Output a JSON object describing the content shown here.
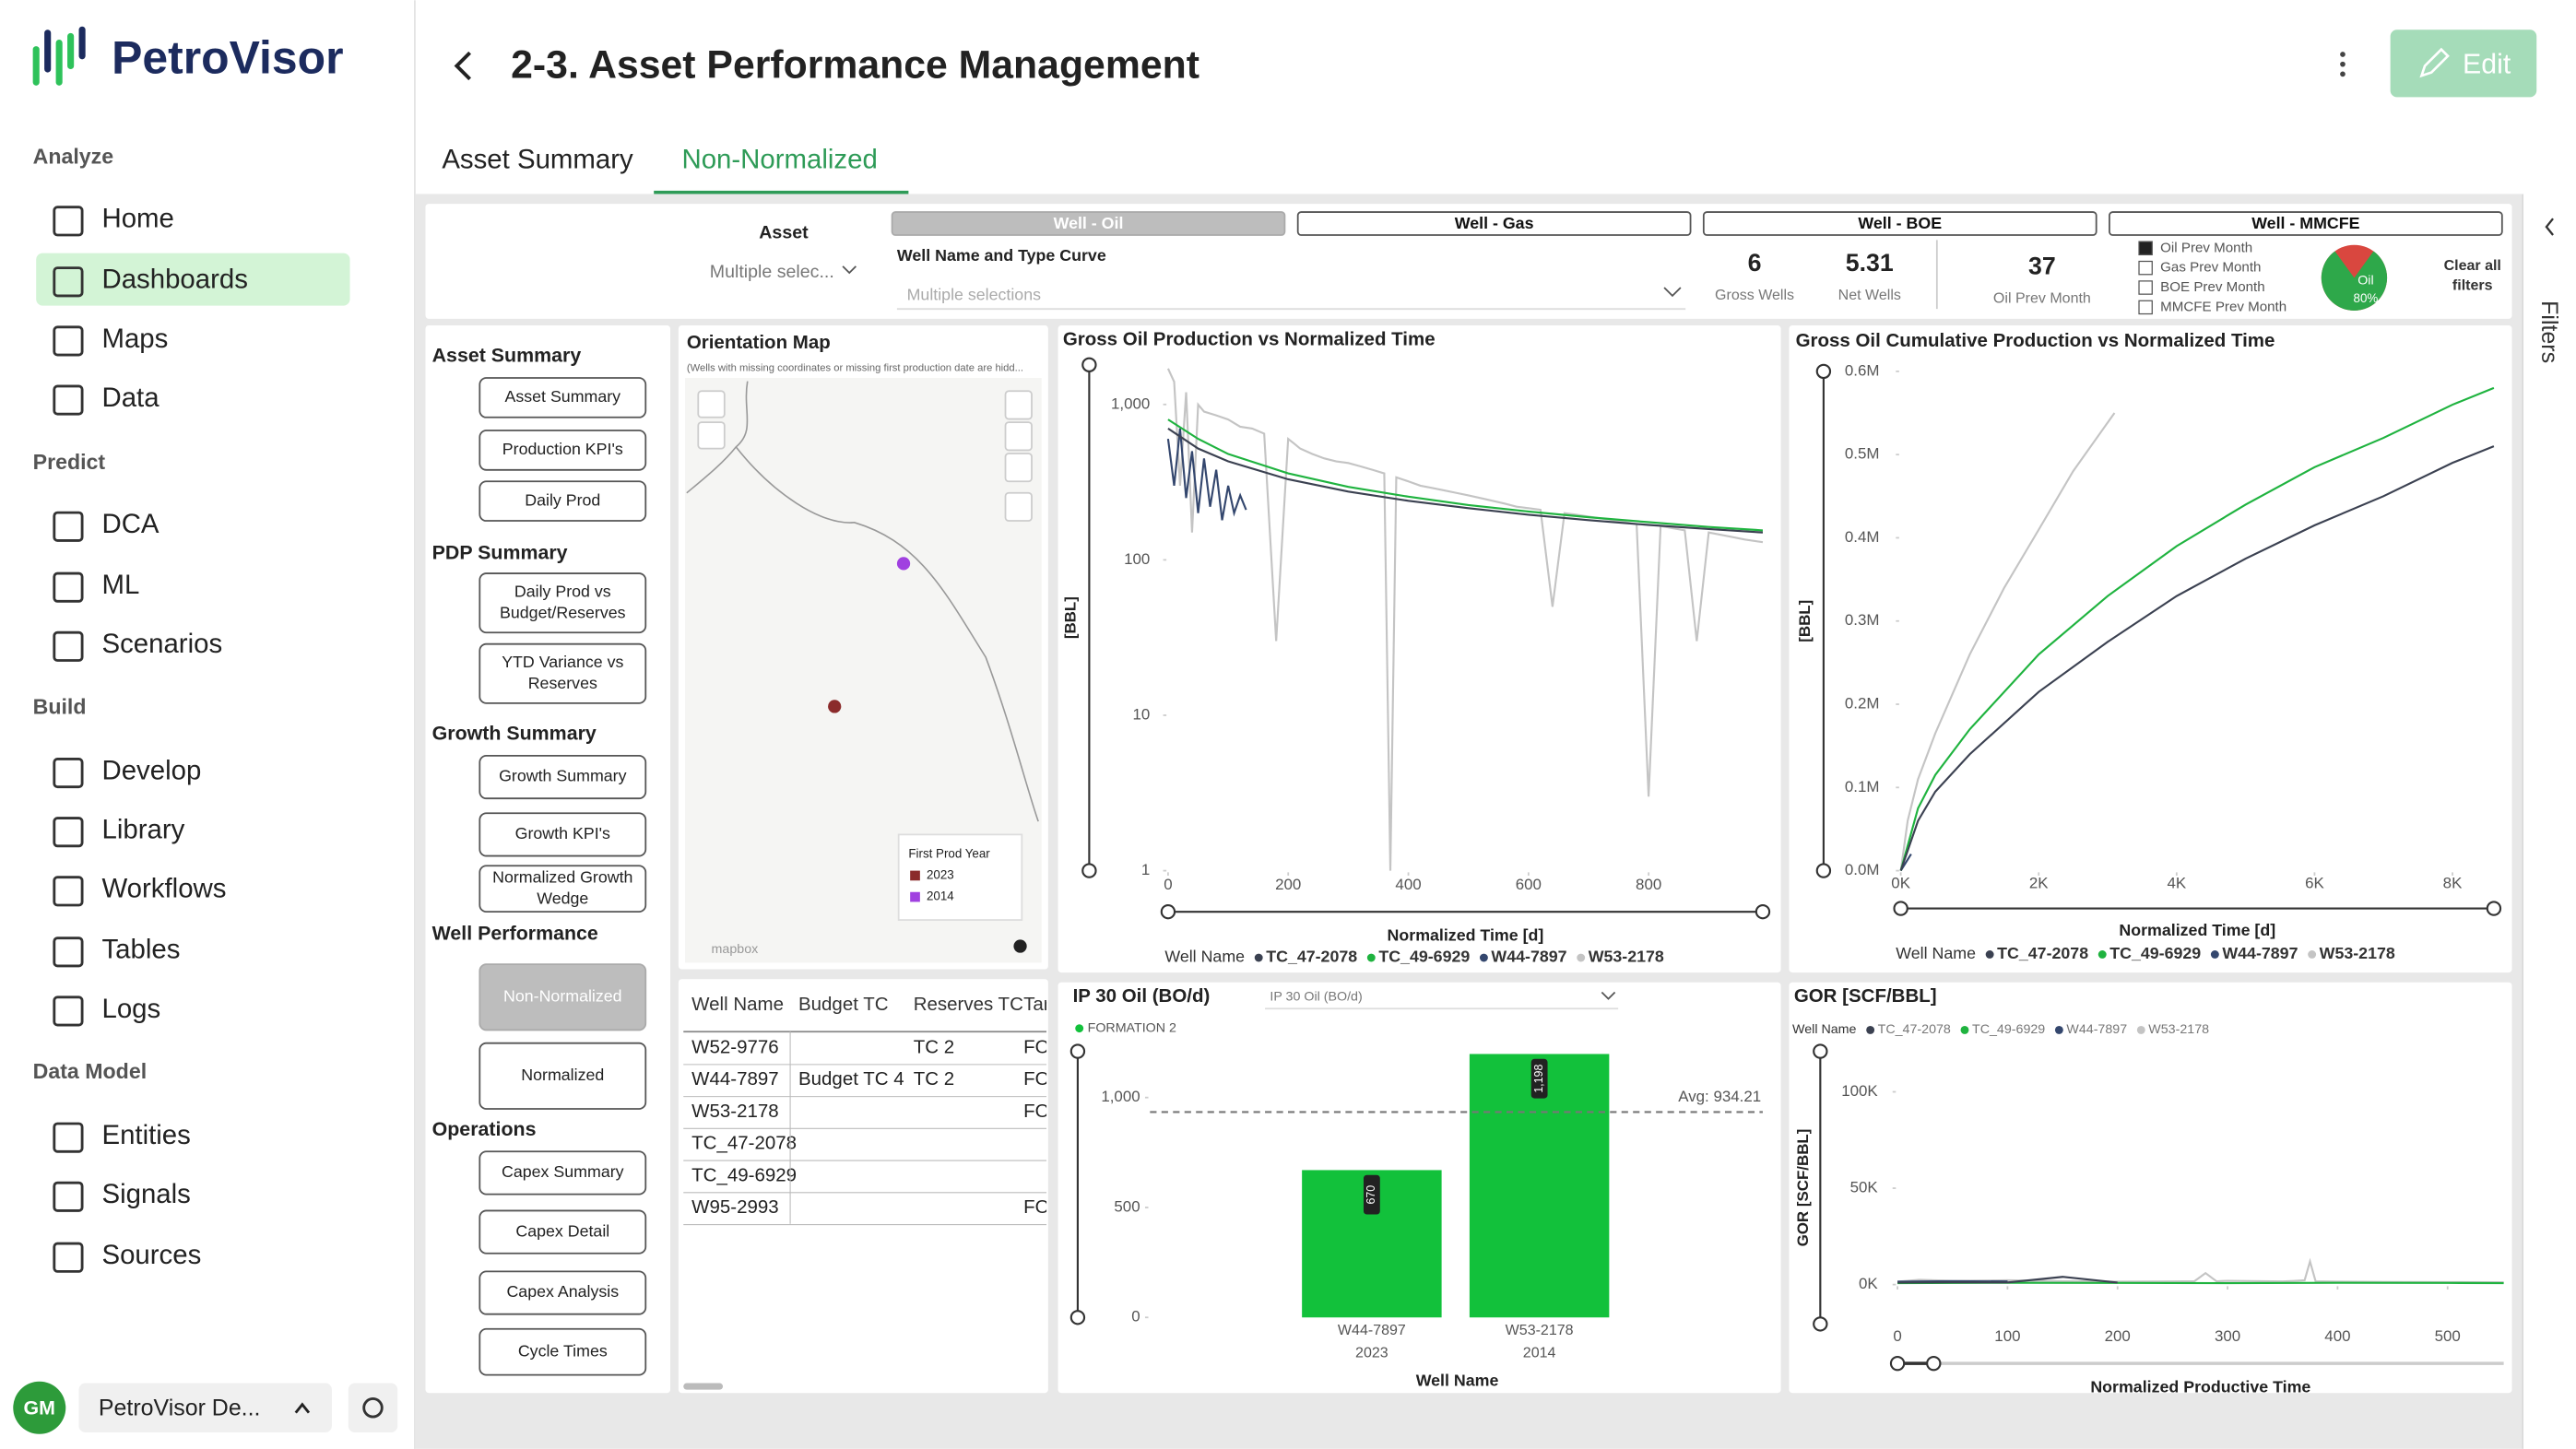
{
  "sidebar": {
    "brand": "PetroVisor",
    "sections": [
      {
        "title": "Analyze",
        "items": [
          "Home",
          "Dashboards",
          "Maps",
          "Data"
        ]
      },
      {
        "title": "Predict",
        "items": [
          "DCA",
          "ML",
          "Scenarios"
        ]
      },
      {
        "title": "Build",
        "items": [
          "Develop",
          "Library",
          "Workflows",
          "Tables",
          "Logs"
        ]
      },
      {
        "title": "Data Model",
        "items": [
          "Entities",
          "Signals",
          "Sources"
        ]
      }
    ],
    "user_initials": "GM",
    "workspace": "PetroVisor De..."
  },
  "header": {
    "title": "2-3. Asset Performance Management",
    "edit": "Edit"
  },
  "tabs": [
    "Asset Summary",
    "Non-Normalized"
  ],
  "filters": {
    "asset_label": "Asset",
    "asset_value": "Multiple selec...",
    "well_label": "Well Name and Type Curve",
    "well_value": "Multiple selections",
    "tabs": [
      "Well - Oil",
      "Well - Gas",
      "Well - BOE",
      "Well - MMCFE"
    ],
    "kpis": [
      {
        "value": 6,
        "label": "Gross Wells"
      },
      {
        "value": 5.31,
        "label": "Net Wells"
      },
      {
        "value": 37,
        "label": "Oil Prev Month"
      }
    ],
    "legend": [
      "Oil Prev Month",
      "Gas Prev Month",
      "BOE Prev Month",
      "MMCFE Prev Month"
    ],
    "pie": {
      "name": "Oil",
      "value": 80,
      "value_label": "80%",
      "color": "#2ea84a"
    },
    "clear": [
      "Clear all",
      "filters"
    ]
  },
  "filter_pane": "Filters",
  "nav": [
    {
      "title": "Asset Summary",
      "buttons": [
        [
          "Asset Summary"
        ],
        [
          "Production KPI's"
        ],
        [
          "Daily Prod"
        ]
      ]
    },
    {
      "title": "PDP Summary",
      "buttons": [
        [
          "Daily Prod vs",
          "Budget/Reserves"
        ],
        [
          "YTD Variance vs",
          "Reserves"
        ]
      ]
    },
    {
      "title": "Growth Summary",
      "buttons": [
        [
          "Growth Summary"
        ],
        [
          "Growth KPI's"
        ],
        [
          "Normalized Growth",
          "Wedge"
        ]
      ]
    },
    {
      "title": "Well Performance",
      "buttons": [
        [
          "Non-Normalized"
        ],
        [
          "Normalized"
        ]
      ]
    },
    {
      "title": "Operations",
      "buttons": [
        [
          "Capex Summary"
        ],
        [
          "Capex Detail"
        ],
        [
          "Capex Analysis"
        ],
        [
          "Cycle Times"
        ]
      ]
    }
  ],
  "map": {
    "title": "Orientation Map",
    "note": "(Wells with missing coordinates or missing first production date are hidd...",
    "legend_title": "First Prod Year",
    "legend": [
      {
        "label": "2023",
        "color": "#8b2b2b"
      },
      {
        "label": "2014",
        "color": "#a040e0"
      }
    ],
    "attribution": "mapbox"
  },
  "table": {
    "columns": [
      "Well Name",
      "Budget TC",
      "Reserves TC",
      "Tar"
    ],
    "rows": [
      [
        "W52-9776",
        null,
        "TC 2",
        "FO"
      ],
      [
        "W44-7897",
        "Budget TC 4",
        "TC 2",
        "FO"
      ],
      [
        "W53-2178",
        null,
        null,
        "FO"
      ],
      [
        "TC_47-2078",
        null,
        null,
        null
      ],
      [
        "TC_49-6929",
        null,
        null,
        null
      ],
      [
        "W95-2993",
        null,
        null,
        "FO"
      ]
    ]
  },
  "chart_data": [
    {
      "type": "line",
      "title": "Gross Oil Production vs Normalized Time",
      "x_label": "Normalized Time [d]",
      "y_label": "[BBL]",
      "legend_title": "Well Name",
      "log_y": true,
      "xlim": [
        0,
        990
      ],
      "xticks": [
        0,
        200,
        400,
        600,
        800
      ],
      "ylim": [
        1,
        1800
      ],
      "yticks": [
        1,
        10,
        100,
        {
          "value": 1000,
          "label": "1,000"
        }
      ],
      "series": [
        {
          "name": "TC_47-2078",
          "color": "#3b4151",
          "x": [
            0,
            50,
            100,
            200,
            300,
            400,
            500,
            600,
            700,
            800,
            900,
            990
          ],
          "values": [
            700,
            520,
            430,
            330,
            275,
            240,
            215,
            195,
            180,
            168,
            158,
            150
          ]
        },
        {
          "name": "TC_49-6929",
          "color": "#1fb33f",
          "x": [
            0,
            50,
            100,
            200,
            300,
            400,
            500,
            600,
            700,
            800,
            900,
            990
          ],
          "values": [
            800,
            600,
            480,
            360,
            295,
            255,
            225,
            205,
            188,
            175,
            163,
            155
          ]
        },
        {
          "name": "W44-7897",
          "color": "#34476e",
          "x": [
            0,
            10,
            20,
            30,
            40,
            50,
            60,
            70,
            80,
            90,
            100,
            110,
            120,
            130
          ],
          "values": [
            600,
            300,
            700,
            250,
            500,
            200,
            450,
            220,
            380,
            180,
            300,
            200,
            260,
            210
          ]
        },
        {
          "name": "W53-2178",
          "color": "#c4c4c4",
          "x": [
            0,
            10,
            20,
            30,
            40,
            50,
            60,
            80,
            100,
            120,
            140,
            160,
            180,
            200,
            210,
            220,
            240,
            260,
            280,
            300,
            320,
            340,
            360,
            370,
            380,
            400,
            420,
            440,
            460,
            480,
            500,
            520,
            540,
            560,
            580,
            600,
            620,
            640,
            660,
            680,
            700,
            720,
            740,
            760,
            780,
            800,
            820,
            840,
            860,
            880,
            900,
            920,
            940,
            960,
            990
          ],
          "values": [
            1700,
            1400,
            300,
            1200,
            150,
            1000,
            900,
            850,
            800,
            720,
            700,
            650,
            30,
            600,
            560,
            520,
            480,
            450,
            430,
            420,
            400,
            380,
            360,
            1,
            340,
            320,
            300,
            290,
            280,
            270,
            260,
            250,
            240,
            230,
            220,
            215,
            210,
            50,
            200,
            195,
            190,
            185,
            180,
            175,
            170,
            3,
            165,
            160,
            155,
            30,
            150,
            145,
            140,
            135,
            130
          ]
        }
      ]
    },
    {
      "type": "line",
      "title": "Gross Oil Cumulative Production vs Normalized Time",
      "x_label": "Normalized Time [d]",
      "y_label": "[BBL]",
      "legend_title": "Well Name",
      "xlim": [
        0,
        8600
      ],
      "xticks": [
        {
          "value": 0,
          "label": "0K"
        },
        {
          "value": 2000,
          "label": "2K"
        },
        {
          "value": 4000,
          "label": "4K"
        },
        {
          "value": 6000,
          "label": "6K"
        },
        {
          "value": 8000,
          "label": "8K"
        }
      ],
      "ylim": [
        0,
        600000
      ],
      "yticks": [
        {
          "value": 0,
          "label": "0.0M"
        },
        {
          "value": 100000,
          "label": "0.1M"
        },
        {
          "value": 200000,
          "label": "0.2M"
        },
        {
          "value": 300000,
          "label": "0.3M"
        },
        {
          "value": 400000,
          "label": "0.4M"
        },
        {
          "value": 500000,
          "label": "0.5M"
        },
        {
          "value": 600000,
          "label": "0.6M"
        }
      ],
      "series": [
        {
          "name": "TC_47-2078",
          "color": "#3b4151",
          "x": [
            0,
            250,
            500,
            1000,
            2000,
            3000,
            4000,
            5000,
            6000,
            7000,
            8000,
            8600
          ],
          "values": [
            0,
            60000,
            95000,
            140000,
            215000,
            275000,
            330000,
            375000,
            415000,
            450000,
            490000,
            510000
          ]
        },
        {
          "name": "TC_49-6929",
          "color": "#1fb33f",
          "x": [
            0,
            250,
            500,
            1000,
            2000,
            3000,
            4000,
            5000,
            6000,
            7000,
            8000,
            8600
          ],
          "values": [
            0,
            75000,
            115000,
            170000,
            260000,
            330000,
            390000,
            440000,
            485000,
            520000,
            560000,
            580000
          ]
        },
        {
          "name": "W44-7897",
          "color": "#34476e",
          "x": [
            0,
            150
          ],
          "values": [
            0,
            20000
          ]
        },
        {
          "name": "W53-2178",
          "color": "#c4c4c4",
          "x": [
            0,
            100,
            250,
            500,
            1000,
            1500,
            2000,
            2500,
            3100
          ],
          "values": [
            0,
            60000,
            110000,
            165000,
            260000,
            340000,
            410000,
            480000,
            550000
          ]
        }
      ]
    },
    {
      "type": "bar",
      "title": "IP 30 Oil (BO/d)",
      "measure": "IP 30 Oil (BO/d)",
      "x_label": "Well Name",
      "series_name": "FORMATION 2",
      "categories": [
        "W44-7897",
        "W53-2178"
      ],
      "sublabels": [
        "2023",
        "2014"
      ],
      "values": [
        670,
        1198
      ],
      "value_labels": [
        "670",
        "1,198"
      ],
      "color": "#12c13b",
      "ylim": [
        0,
        1210
      ],
      "yticks": [
        0,
        500,
        {
          "value": 1000,
          "label": "1,000"
        }
      ],
      "avg": 934.21,
      "avg_label": "Avg: 934.21"
    },
    {
      "type": "line",
      "title": "GOR [SCF/BBL]",
      "x_label": "Normalized Productive Time",
      "y_label": "GOR [SCF/BBL]",
      "legend_title": "Well Name",
      "xlim": [
        0,
        551
      ],
      "xticks": [
        0,
        100,
        200,
        300,
        400,
        500
      ],
      "ylim": [
        0,
        121000
      ],
      "yticks": [
        {
          "value": 0,
          "label": "0K"
        },
        {
          "value": 50000,
          "label": "50K"
        },
        {
          "value": 100000,
          "label": "100K"
        }
      ],
      "series": [
        {
          "name": "TC_47-2078",
          "color": "#3b4151",
          "x": [
            0,
            50,
            100,
            150,
            200
          ],
          "values": [
            1000,
            1200,
            1100,
            4000,
            1000
          ]
        },
        {
          "name": "TC_49-6929",
          "color": "#1fb33f",
          "x": [
            0,
            100,
            200,
            300,
            400,
            500,
            551
          ],
          "values": [
            800,
            900,
            850,
            800,
            900,
            850,
            800
          ]
        },
        {
          "name": "W44-7897",
          "color": "#34476e",
          "x": [
            0,
            50,
            100
          ],
          "values": [
            1500,
            1800,
            1600
          ]
        },
        {
          "name": "W53-2178",
          "color": "#c4c4c4",
          "x": [
            0,
            20,
            50,
            100,
            150,
            200,
            250,
            270,
            280,
            290,
            300,
            350,
            360,
            370,
            375,
            380,
            400,
            450,
            500,
            551
          ],
          "values": [
            1500,
            2500,
            2000,
            2200,
            1800,
            1500,
            1600,
            1800,
            6000,
            1700,
            2000,
            1600,
            1900,
            2200,
            12000,
            1700,
            1500,
            1400,
            1300,
            1200
          ]
        }
      ]
    }
  ]
}
